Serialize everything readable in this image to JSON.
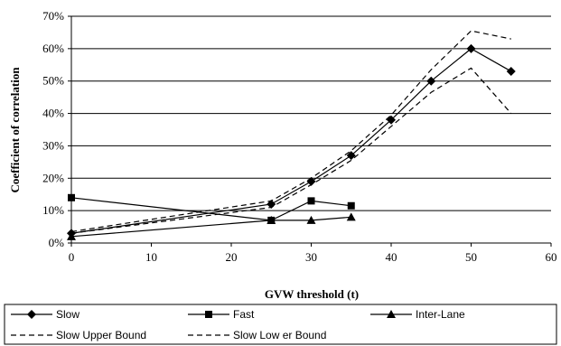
{
  "chart_data": {
    "type": "line",
    "title": "",
    "xlabel": "GVW threshold (t)",
    "ylabel": "Coefficient of correlation",
    "xlim": [
      0,
      60
    ],
    "ylim": [
      0,
      0.7
    ],
    "x_ticks": [
      "0",
      "10",
      "20",
      "30",
      "40",
      "50",
      "60"
    ],
    "y_ticks": [
      "0%",
      "10%",
      "20%",
      "30%",
      "40%",
      "50%",
      "60%",
      "70%"
    ],
    "grid": "horizontal",
    "legend_position": "bottom",
    "series": [
      {
        "name": "Slow",
        "marker": "diamond",
        "style": "solid",
        "x": [
          0,
          25,
          30,
          35,
          40,
          45,
          50,
          55
        ],
        "y": [
          0.03,
          0.12,
          0.19,
          0.27,
          0.38,
          0.5,
          0.6,
          0.53
        ]
      },
      {
        "name": "Fast",
        "marker": "square",
        "style": "solid",
        "x": [
          0,
          25,
          30,
          35
        ],
        "y": [
          0.14,
          0.07,
          0.13,
          0.115
        ]
      },
      {
        "name": "Inter-Lane",
        "marker": "triangle",
        "style": "solid",
        "x": [
          0,
          25,
          30,
          35
        ],
        "y": [
          0.02,
          0.07,
          0.07,
          0.08
        ]
      },
      {
        "name": "Slow  Upper Bound",
        "marker": "none",
        "style": "dashed",
        "x": [
          0,
          25,
          30,
          35,
          40,
          45,
          50,
          55
        ],
        "y": [
          0.035,
          0.13,
          0.2,
          0.285,
          0.395,
          0.535,
          0.655,
          0.63
        ]
      },
      {
        "name": "Slow  Low er Bound",
        "marker": "none",
        "style": "dashed",
        "x": [
          0,
          25,
          30,
          35,
          40,
          45,
          50,
          55
        ],
        "y": [
          0.03,
          0.11,
          0.18,
          0.255,
          0.36,
          0.465,
          0.54,
          0.4
        ]
      }
    ]
  }
}
